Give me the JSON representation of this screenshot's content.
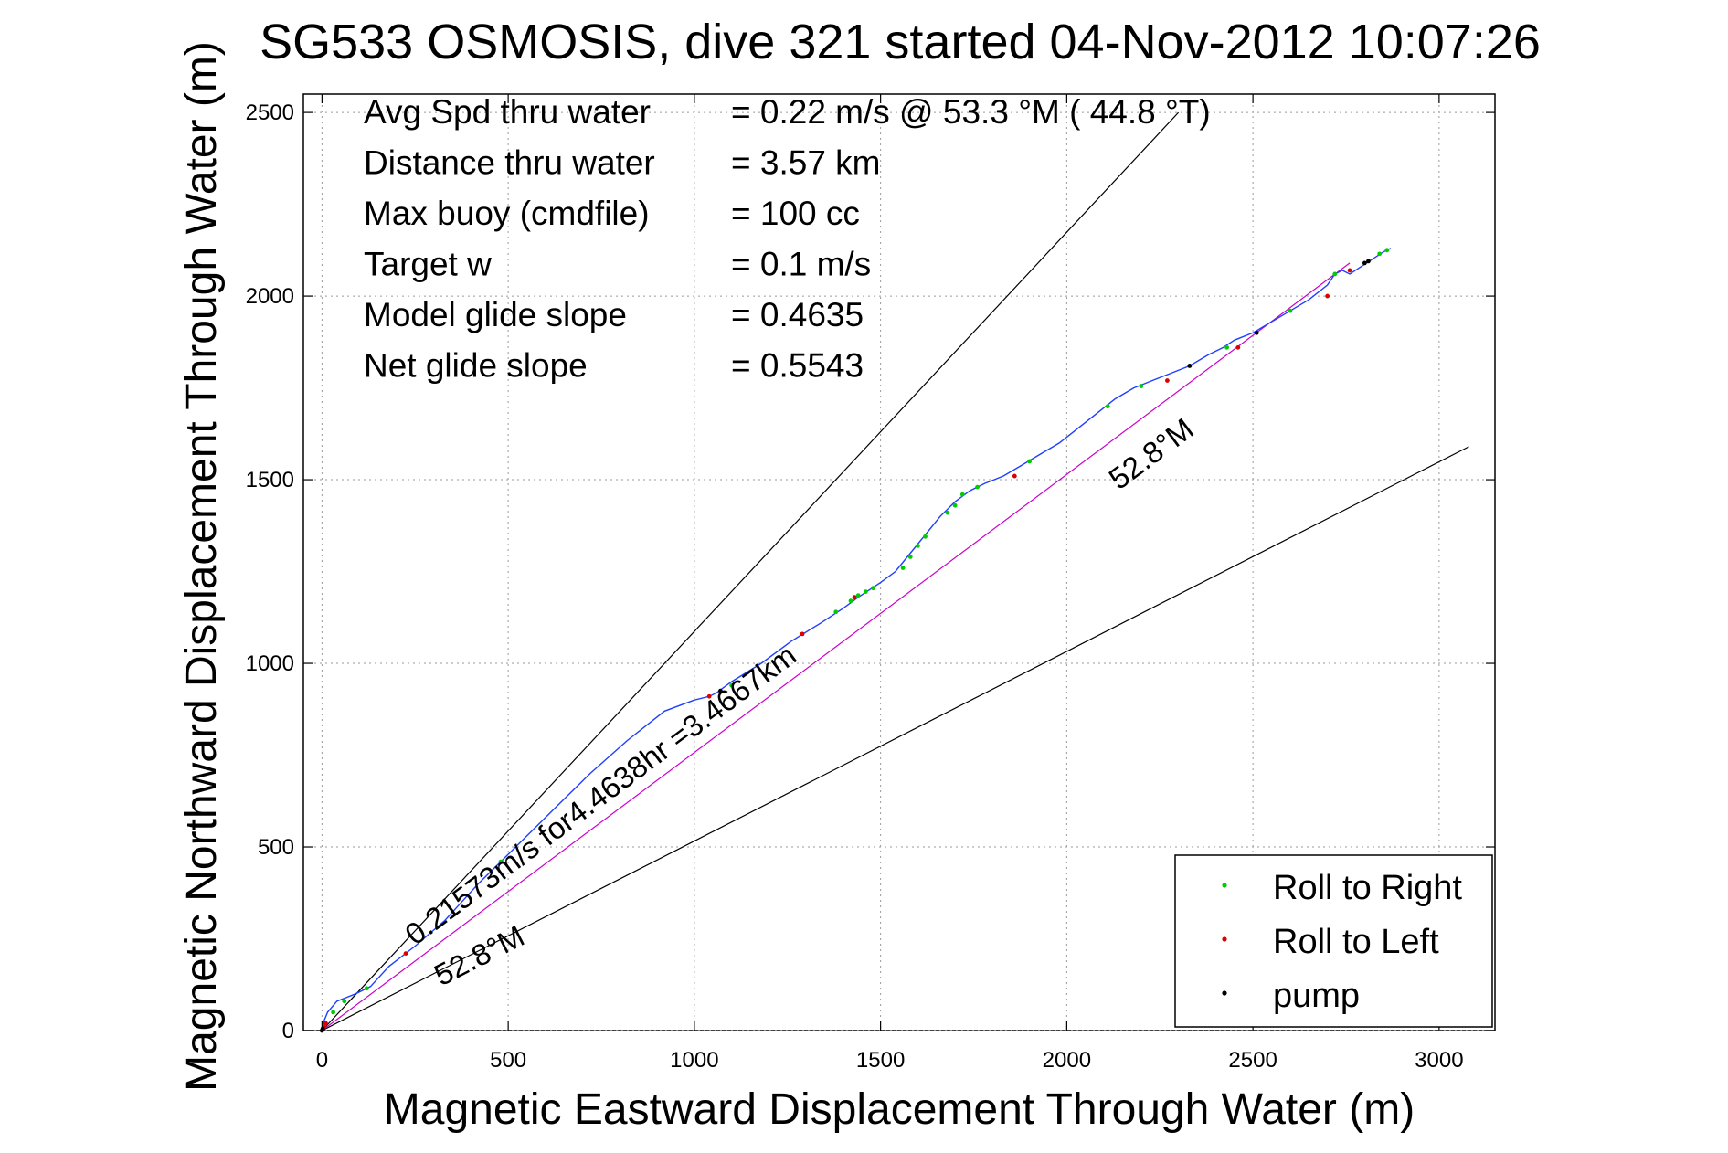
{
  "chart_data": {
    "type": "scatter",
    "title": "SG533 OSMOSIS, dive 321 started 04-Nov-2012 10:07:26",
    "xlabel": "Magnetic Eastward Displacement Through Water (m)",
    "ylabel": "Magnetic Northward Displacement Through Water (m)",
    "xlim": [
      -50,
      3150
    ],
    "ylim": [
      0,
      2550
    ],
    "xticks": [
      0,
      500,
      1000,
      1500,
      2000,
      2500,
      3000
    ],
    "yticks": [
      0,
      500,
      1000,
      1500,
      2000,
      2500
    ],
    "xtick_labels": [
      "0",
      "500",
      "1000",
      "1500",
      "2000",
      "2500",
      "3000"
    ],
    "ytick_labels": [
      "0",
      "500",
      "1000",
      "1500",
      "2000",
      "2500"
    ],
    "grid": true,
    "legend_position": "bottom-right",
    "stats": [
      {
        "label": "Avg Spd thru water",
        "value": "=  0.22 m/s @  53.3 °M ( 44.8 °T)"
      },
      {
        "label": "Distance thru water",
        "value": "=  3.57 km"
      },
      {
        "label": "Max buoy (cmdfile)",
        "value": "= 100 cc"
      },
      {
        "label": "Target w",
        "value": "= 0.1 m/s"
      },
      {
        "label": "Model glide slope",
        "value": "= 0.4635"
      },
      {
        "label": "Net glide slope",
        "value": "= 0.5543"
      }
    ],
    "annotations": [
      {
        "text": "0.21573m/s for4.4638hr =3.4667km",
        "x": 250,
        "y": 230
      },
      {
        "text": "52.8°M",
        "x": 2140,
        "y": 1470
      },
      {
        "text": "52.8°M",
        "x": 320,
        "y": 120
      }
    ],
    "reference_lines": [
      {
        "name": "upper",
        "x": [
          0,
          2300
        ],
        "y": [
          0,
          2500
        ]
      },
      {
        "name": "lower",
        "x": [
          0,
          3080
        ],
        "y": [
          0,
          1590
        ]
      },
      {
        "name": "net",
        "x": [
          0,
          2760
        ],
        "y": [
          0,
          2090
        ]
      }
    ],
    "colors": {
      "track": "#1f3fff",
      "net_line": "#cc00cc",
      "roll_right": "#00cc00",
      "roll_left": "#dd0000",
      "pump": "#000000",
      "ref_line": "#000000"
    },
    "track": {
      "x": [
        0,
        5,
        15,
        40,
        90,
        130,
        180,
        250,
        330,
        420,
        520,
        620,
        720,
        820,
        920,
        1000,
        1040,
        1060,
        1100,
        1180,
        1260,
        1340,
        1400,
        1440,
        1500,
        1540,
        1580,
        1620,
        1660,
        1700,
        1740,
        1780,
        1830,
        1880,
        1930,
        1980,
        2030,
        2080,
        2130,
        2180,
        2230,
        2280,
        2330,
        2380,
        2420,
        2450,
        2500,
        2550,
        2600,
        2650,
        2700,
        2720,
        2740,
        2760,
        2790,
        2820,
        2850,
        2870
      ],
      "y": [
        0,
        25,
        50,
        80,
        100,
        120,
        175,
        230,
        300,
        400,
        500,
        600,
        700,
        790,
        870,
        900,
        910,
        920,
        950,
        1000,
        1060,
        1110,
        1150,
        1180,
        1220,
        1250,
        1300,
        1350,
        1400,
        1440,
        1470,
        1490,
        1510,
        1540,
        1570,
        1600,
        1640,
        1680,
        1720,
        1750,
        1770,
        1790,
        1810,
        1840,
        1860,
        1880,
        1900,
        1930,
        1960,
        1990,
        2030,
        2060,
        2070,
        2060,
        2080,
        2100,
        2120,
        2130
      ]
    },
    "series": [
      {
        "name": "Roll to Right",
        "marker": "dot",
        "color": "#00cc00",
        "x": [
          30,
          60,
          120,
          480,
          1100,
          1380,
          1420,
          1440,
          1460,
          1480,
          1560,
          1580,
          1600,
          1620,
          1680,
          1700,
          1720,
          1760,
          1900,
          2110,
          2200,
          2430,
          2600,
          2720,
          2840,
          2860
        ],
        "y": [
          50,
          80,
          115,
          460,
          940,
          1140,
          1170,
          1185,
          1195,
          1205,
          1260,
          1290,
          1320,
          1345,
          1410,
          1430,
          1460,
          1480,
          1550,
          1700,
          1755,
          1860,
          1960,
          2060,
          2115,
          2125
        ]
      },
      {
        "name": "Roll to Left",
        "marker": "dot",
        "color": "#dd0000",
        "x": [
          5,
          10,
          225,
          1040,
          1290,
          1430,
          1860,
          2270,
          2460,
          2700,
          2760
        ],
        "y": [
          10,
          20,
          210,
          910,
          1080,
          1180,
          1510,
          1770,
          1860,
          2000,
          2070
        ]
      },
      {
        "name": "pump",
        "marker": "dot",
        "color": "#000000",
        "x": [
          0,
          2,
          1070,
          2330,
          2510,
          2800,
          2810
        ],
        "y": [
          0,
          5,
          925,
          1810,
          1900,
          2090,
          2095
        ]
      }
    ]
  }
}
